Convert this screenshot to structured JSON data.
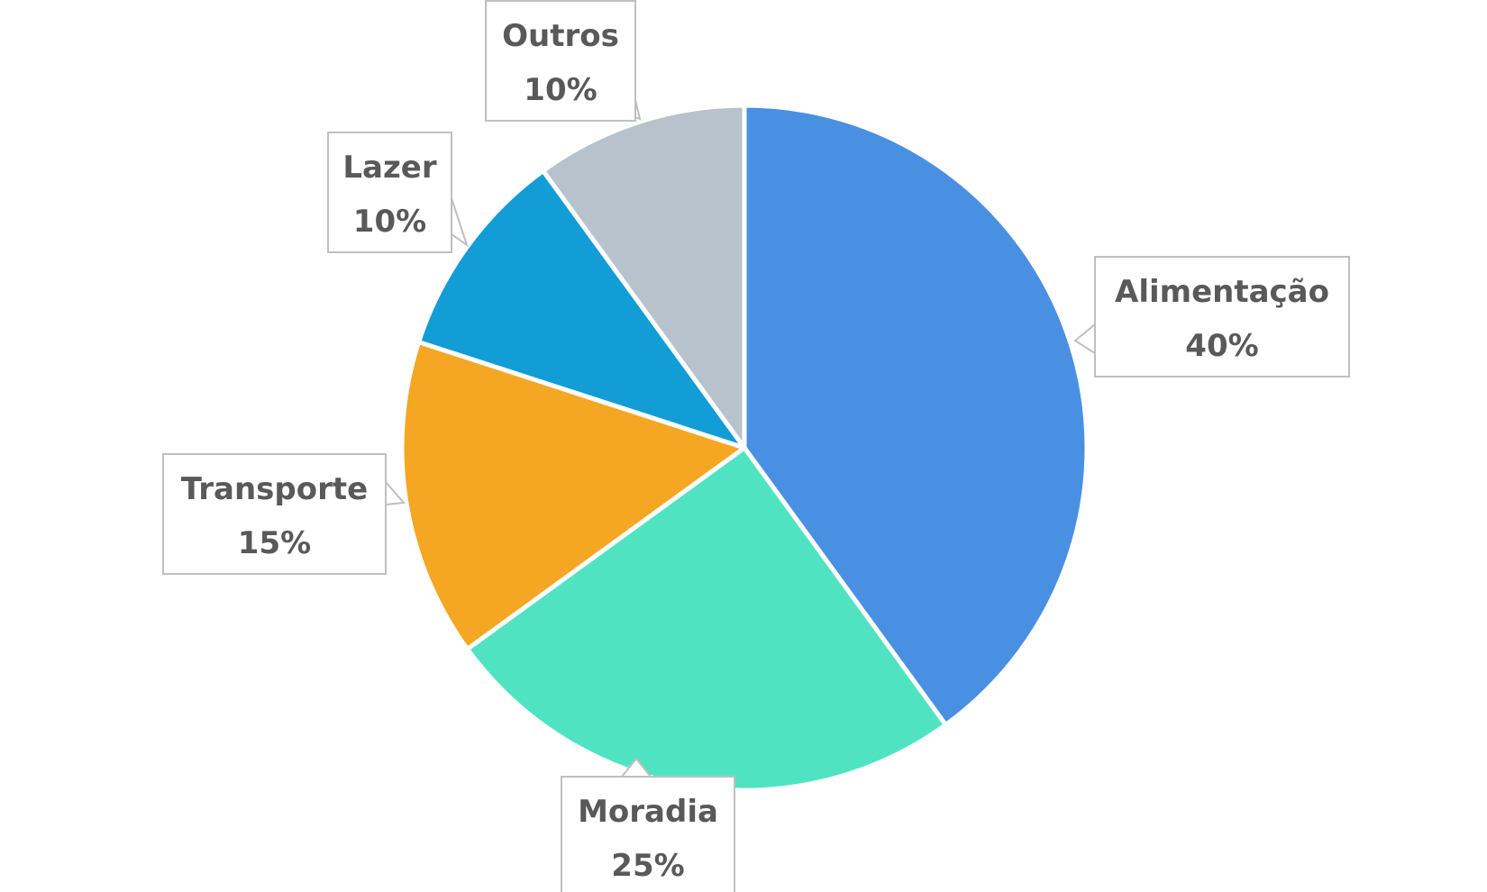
{
  "chart_data": {
    "type": "pie",
    "title": "",
    "slices": [
      {
        "label": "Alimentação",
        "value": 40,
        "value_label": "40%",
        "color": "#4A90E2"
      },
      {
        "label": "Moradia",
        "value": 25,
        "value_label": "25%",
        "color": "#50E3C2"
      },
      {
        "label": "Transporte",
        "value": 15,
        "value_label": "15%",
        "color": "#F5A623"
      },
      {
        "label": "Lazer",
        "value": 10,
        "value_label": "10%",
        "color": "#129DD6"
      },
      {
        "label": "Outros",
        "value": 10,
        "value_label": "10%",
        "color": "#B8C2CC"
      }
    ],
    "start_angle_deg": 0,
    "direction": "clockwise",
    "legend": "none",
    "data_labels": "callouts showing category name and percentage"
  }
}
